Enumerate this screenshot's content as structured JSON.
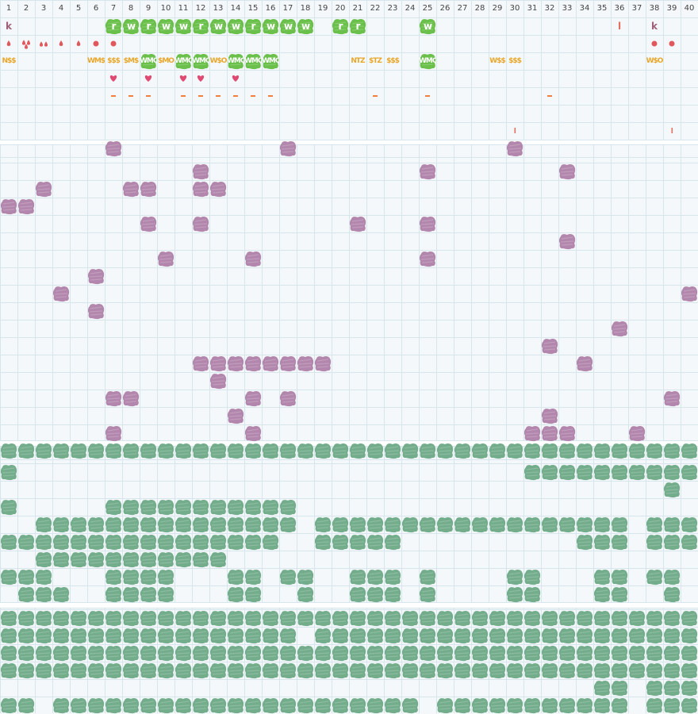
{
  "columns": [
    "1",
    "2",
    "3",
    "4",
    "5",
    "6",
    "7",
    "8",
    "9",
    "10",
    "11",
    "12",
    "13",
    "14",
    "15",
    "16",
    "17",
    "18",
    "19",
    "20",
    "21",
    "22",
    "23",
    "24",
    "25",
    "26",
    "27",
    "28",
    "29",
    "30",
    "31",
    "32",
    "33",
    "34",
    "35",
    "36",
    "37",
    "38",
    "39",
    "40"
  ],
  "colors": {
    "grid_line": "#d7e6ec",
    "band_separator": "#ffffff",
    "green_tile": "#6ac04a",
    "purple_tile": "#b387ad",
    "teal_tile": "#73ad8b",
    "red": "#e0585c",
    "yellow": "#e9a72a",
    "orange": "#f08040",
    "pink": "#e04a72",
    "k_color": "#a06078",
    "bar_color": "#e07060"
  },
  "row1_letters": [
    {
      "col": 1,
      "text": "k",
      "kind": "plain"
    },
    {
      "col": 7,
      "text": "r",
      "kind": "tile"
    },
    {
      "col": 8,
      "text": "w",
      "kind": "tile"
    },
    {
      "col": 9,
      "text": "r",
      "kind": "tile"
    },
    {
      "col": 10,
      "text": "w",
      "kind": "tile"
    },
    {
      "col": 11,
      "text": "w",
      "kind": "tile"
    },
    {
      "col": 12,
      "text": "r",
      "kind": "tile"
    },
    {
      "col": 13,
      "text": "w",
      "kind": "tile"
    },
    {
      "col": 14,
      "text": "w",
      "kind": "tile"
    },
    {
      "col": 15,
      "text": "r",
      "kind": "tile"
    },
    {
      "col": 16,
      "text": "w",
      "kind": "tile"
    },
    {
      "col": 17,
      "text": "w",
      "kind": "tile"
    },
    {
      "col": 18,
      "text": "w",
      "kind": "tile"
    },
    {
      "col": 20,
      "text": "r",
      "kind": "tile"
    },
    {
      "col": 21,
      "text": "r",
      "kind": "tile"
    },
    {
      "col": 25,
      "text": "w",
      "kind": "tile"
    },
    {
      "col": 36,
      "text": "l",
      "kind": "plain"
    },
    {
      "col": 38,
      "text": "k",
      "kind": "plain"
    }
  ],
  "row2_icons": [
    {
      "col": 1,
      "icon": "drop"
    },
    {
      "col": 2,
      "icon": "drop-cluster"
    },
    {
      "col": 3,
      "icon": "drop-pair"
    },
    {
      "col": 4,
      "icon": "drop"
    },
    {
      "col": 5,
      "icon": "drop"
    },
    {
      "col": 6,
      "icon": "dot"
    },
    {
      "col": 7,
      "icon": "dot"
    },
    {
      "col": 38,
      "icon": "dot"
    },
    {
      "col": 39,
      "icon": "dot"
    }
  ],
  "row3_labels": [
    {
      "col": 1,
      "text": "N$$",
      "kind": "plain"
    },
    {
      "col": 6,
      "text": "WM$",
      "kind": "plain"
    },
    {
      "col": 7,
      "text": "$$$",
      "kind": "plain"
    },
    {
      "col": 8,
      "text": "$M$",
      "kind": "plain"
    },
    {
      "col": 9,
      "text": "WMO",
      "kind": "tile"
    },
    {
      "col": 10,
      "text": "$MO",
      "kind": "plain"
    },
    {
      "col": 11,
      "text": "WMO",
      "kind": "tile"
    },
    {
      "col": 12,
      "text": "WMO",
      "kind": "tile"
    },
    {
      "col": 13,
      "text": "W$O",
      "kind": "plain"
    },
    {
      "col": 14,
      "text": "WMO",
      "kind": "tile"
    },
    {
      "col": 15,
      "text": "WMO",
      "kind": "tile"
    },
    {
      "col": 16,
      "text": "WMO",
      "kind": "tile"
    },
    {
      "col": 21,
      "text": "NTZ",
      "kind": "plain"
    },
    {
      "col": 22,
      "text": "$TZ",
      "kind": "plain"
    },
    {
      "col": 23,
      "text": "$$$",
      "kind": "plain"
    },
    {
      "col": 25,
      "text": "WMO",
      "kind": "tile"
    },
    {
      "col": 29,
      "text": "W$$",
      "kind": "plain"
    },
    {
      "col": 30,
      "text": "$$$",
      "kind": "plain"
    },
    {
      "col": 38,
      "text": "W$O",
      "kind": "plain"
    }
  ],
  "row4_hearts": [
    7,
    9,
    11,
    12,
    14
  ],
  "row5_dashes": [
    7,
    8,
    9,
    11,
    12,
    13,
    14,
    15,
    16,
    22,
    25,
    32
  ],
  "row7_bars": [
    30,
    39
  ],
  "purple_cells": [
    [
      7,
      8
    ],
    [
      17,
      8
    ],
    [
      30,
      8
    ],
    [
      12,
      9
    ],
    [
      25,
      9
    ],
    [
      33,
      9
    ],
    [
      3,
      10
    ],
    [
      8,
      10
    ],
    [
      9,
      10
    ],
    [
      12,
      10
    ],
    [
      13,
      10
    ],
    [
      1,
      11
    ],
    [
      2,
      11
    ],
    [
      9,
      12
    ],
    [
      12,
      12
    ],
    [
      21,
      12
    ],
    [
      25,
      12
    ],
    [
      33,
      13
    ],
    [
      10,
      14
    ],
    [
      15,
      14
    ],
    [
      25,
      14
    ],
    [
      6,
      15
    ],
    [
      4,
      16
    ],
    [
      40,
      16
    ],
    [
      6,
      17
    ],
    [
      36,
      18
    ],
    [
      32,
      19
    ],
    [
      12,
      20
    ],
    [
      13,
      20
    ],
    [
      14,
      20
    ],
    [
      15,
      20
    ],
    [
      16,
      20
    ],
    [
      17,
      20
    ],
    [
      18,
      20
    ],
    [
      19,
      20
    ],
    [
      34,
      20
    ],
    [
      13,
      21
    ],
    [
      7,
      22
    ],
    [
      8,
      22
    ],
    [
      15,
      22
    ],
    [
      17,
      22
    ],
    [
      39,
      22
    ],
    [
      14,
      23
    ],
    [
      32,
      23
    ],
    [
      7,
      24
    ],
    [
      15,
      24
    ],
    [
      31,
      24
    ],
    [
      32,
      24
    ],
    [
      33,
      24
    ],
    [
      37,
      24
    ]
  ],
  "teal_rows": [
    {
      "row": 25,
      "cols": "1-40"
    },
    {
      "row": 26,
      "cols": "1,31-40"
    },
    {
      "row": 27,
      "cols": "39"
    },
    {
      "row": 28,
      "cols": "1,7-17"
    },
    {
      "row": 29,
      "cols": "3-17,19-36,38-40"
    },
    {
      "row": 30,
      "cols": "1-16,19-23,34-36,38-40"
    },
    {
      "row": 31,
      "cols": "3-13"
    },
    {
      "row": 32,
      "cols": "1-3,7-10,14-15,17-18,21-23,25,30-31,35-36,38-39"
    },
    {
      "row": 33,
      "cols": "2-4,7-10,14-15,18,21-23,25,30-31,35-36,39"
    },
    {
      "row": 34,
      "cols": "1-40"
    },
    {
      "row": 35,
      "cols": "1-17,19-40"
    },
    {
      "row": 36,
      "cols": "1-40"
    },
    {
      "row": 37,
      "cols": "1-40"
    },
    {
      "row": 38,
      "cols": "35-36,38-40"
    },
    {
      "row": 39,
      "cols": "1-2,4-24,26-36,38-40"
    }
  ]
}
